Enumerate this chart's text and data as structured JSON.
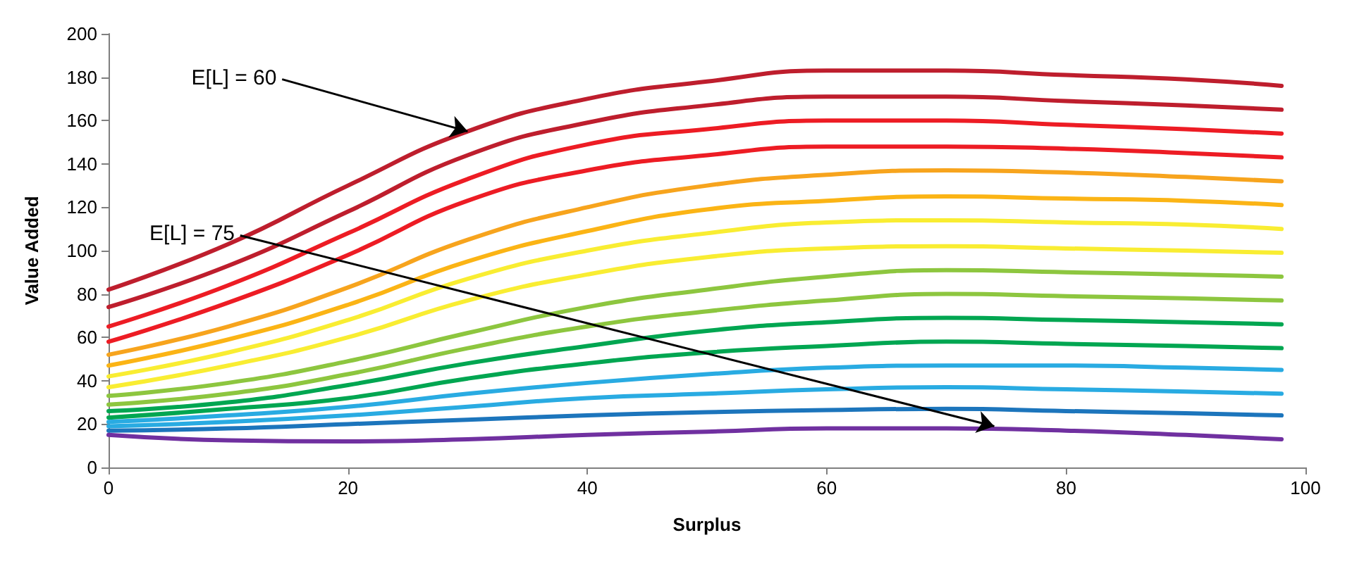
{
  "chart_data": {
    "type": "line",
    "xlabel": "Surplus",
    "ylabel": "Value Added",
    "x": [
      0,
      10,
      20,
      30,
      40,
      50,
      60,
      70,
      80,
      90,
      98
    ],
    "xlim": [
      0,
      100
    ],
    "xticks": [
      0,
      20,
      40,
      60,
      80,
      100
    ],
    "ylim": [
      0,
      200
    ],
    "yticks": [
      0,
      20,
      40,
      60,
      80,
      100,
      120,
      140,
      160,
      180,
      200
    ],
    "grid": false,
    "marker": "none",
    "line_style": "solid",
    "annotations": [
      {
        "text": "E[L] = 60",
        "x": 30,
        "y": 155
      },
      {
        "text": "E[L] = 75",
        "x": 74,
        "y": 19
      }
    ],
    "series": [
      {
        "color": "#be1e2d",
        "values": [
          82,
          103,
          130,
          155,
          170,
          178,
          183,
          183,
          181,
          179,
          176
        ]
      },
      {
        "color": "#be1e2d",
        "values": [
          74,
          93,
          118,
          144,
          159,
          167,
          171,
          171,
          169,
          167,
          165
        ]
      },
      {
        "color": "#ed1c24",
        "values": [
          65,
          84,
          108,
          133,
          149,
          156,
          160,
          160,
          158,
          156,
          154
        ]
      },
      {
        "color": "#ed1c24",
        "values": [
          58,
          76,
          98,
          123,
          137,
          144,
          148,
          148,
          147,
          145,
          143
        ]
      },
      {
        "color": "#f7a41d",
        "values": [
          52,
          65,
          83,
          105,
          120,
          130,
          135,
          137,
          136,
          134,
          132
        ]
      },
      {
        "color": "#fbb415",
        "values": [
          47,
          59,
          75,
          95,
          109,
          119,
          123,
          125,
          124,
          123,
          121
        ]
      },
      {
        "color": "#f9ed32",
        "values": [
          42,
          53,
          68,
          87,
          100,
          108,
          113,
          114,
          113,
          112,
          110
        ]
      },
      {
        "color": "#f9ed32",
        "values": [
          37,
          47,
          60,
          77,
          89,
          97,
          101,
          102,
          101,
          100,
          99
        ]
      },
      {
        "color": "#8dc63f",
        "values": [
          33,
          39,
          49,
          62,
          74,
          82,
          88,
          91,
          90,
          89,
          88
        ]
      },
      {
        "color": "#8dc63f",
        "values": [
          29,
          34,
          43,
          55,
          65,
          72,
          77,
          80,
          79,
          78,
          77
        ]
      },
      {
        "color": "#00a651",
        "values": [
          26,
          30,
          38,
          48,
          56,
          63,
          67,
          69,
          68,
          67,
          66
        ]
      },
      {
        "color": "#00a651",
        "values": [
          23,
          27,
          32,
          41,
          48,
          53,
          56,
          58,
          57,
          56,
          55
        ]
      },
      {
        "color": "#29abe2",
        "values": [
          21,
          24,
          28,
          34,
          39,
          43,
          46,
          47,
          47,
          46,
          45
        ]
      },
      {
        "color": "#29abe2",
        "values": [
          19,
          21,
          24,
          28,
          32,
          34,
          36,
          37,
          36,
          35,
          34
        ]
      },
      {
        "color": "#1c75bc",
        "values": [
          17,
          18,
          20,
          22,
          24,
          25.5,
          26.5,
          27,
          26,
          25,
          24
        ]
      },
      {
        "color": "#7030a0",
        "values": [
          15,
          12.5,
          12,
          13,
          15,
          16.5,
          18,
          18,
          17,
          15,
          13
        ]
      }
    ]
  }
}
